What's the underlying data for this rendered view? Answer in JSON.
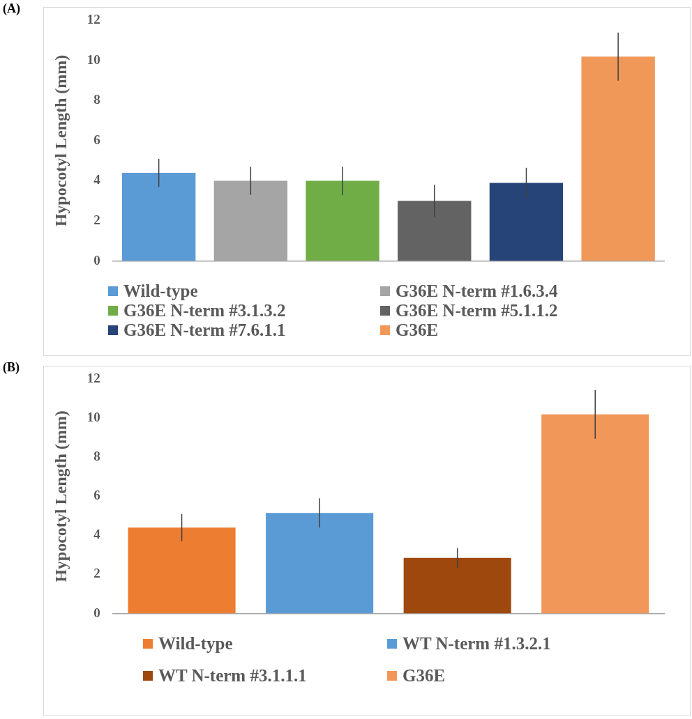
{
  "chart_data": [
    {
      "type": "bar",
      "annotations": [
        "(A)"
      ],
      "ylabel": "Hypocotyl Length (mm)",
      "categories": [
        null,
        null,
        null,
        null,
        null,
        null
      ],
      "ylim": [
        0,
        12
      ],
      "yticks": [
        0,
        2,
        4,
        6,
        8,
        10,
        12
      ],
      "grid": false,
      "legend": "bottom",
      "series": [
        {
          "name": "Wild-type",
          "color": "#5b9bd5",
          "values": [
            4.4,
            null,
            null,
            null,
            null,
            null
          ],
          "errors": [
            0.7,
            null,
            null,
            null,
            null,
            null
          ]
        },
        {
          "name": "G36E N-term #1.6.3.4",
          "color": "#a5a5a5",
          "values": [
            null,
            4.0,
            null,
            null,
            null,
            null
          ],
          "errors": [
            null,
            0.7,
            null,
            null,
            null,
            null
          ]
        },
        {
          "name": "G36E N-term #3.1.3.2",
          "color": "#70ad47",
          "values": [
            null,
            null,
            4.0,
            null,
            null,
            null
          ],
          "errors": [
            null,
            null,
            0.7,
            null,
            null,
            null
          ]
        },
        {
          "name": "G36E N-term #5.1.1.2",
          "color": "#636363",
          "values": [
            null,
            null,
            null,
            3.0,
            null,
            null
          ],
          "errors": [
            null,
            null,
            null,
            0.8,
            null,
            null
          ]
        },
        {
          "name": "G36E N-term #7.6.1.1",
          "color": "#264478",
          "values": [
            null,
            null,
            null,
            null,
            3.9,
            null
          ],
          "errors": [
            null,
            null,
            null,
            null,
            0.75,
            null
          ]
        },
        {
          "name": "G36E",
          "color": "#f09858",
          "values": [
            null,
            null,
            null,
            null,
            null,
            10.2
          ],
          "errors": [
            null,
            null,
            null,
            null,
            null,
            1.2
          ]
        }
      ]
    },
    {
      "type": "bar",
      "annotations": [
        "(B)"
      ],
      "ylabel": "Hypocotyl Length (mm)",
      "categories": [
        null,
        null,
        null,
        null
      ],
      "ylim": [
        0,
        12
      ],
      "yticks": [
        0,
        2,
        4,
        6,
        8,
        10,
        12
      ],
      "grid": false,
      "legend": "bottom",
      "series": [
        {
          "name": "Wild-type",
          "color": "#ed7d31",
          "values": [
            4.4,
            null,
            null,
            null
          ],
          "errors": [
            0.7,
            null,
            null,
            null
          ]
        },
        {
          "name": "WT N-term #1.3.2.1",
          "color": "#5b9bd5",
          "values": [
            null,
            5.15,
            null,
            null
          ],
          "errors": [
            null,
            0.75,
            null,
            null
          ]
        },
        {
          "name": "WT N-term #3.1.1.1",
          "color": "#9e480e",
          "values": [
            null,
            null,
            2.85,
            null
          ],
          "errors": [
            null,
            null,
            0.5,
            null
          ]
        },
        {
          "name": "G36E",
          "color": "#f1975a",
          "values": [
            null,
            null,
            null,
            10.2
          ],
          "errors": [
            null,
            null,
            null,
            1.25
          ]
        }
      ]
    }
  ]
}
